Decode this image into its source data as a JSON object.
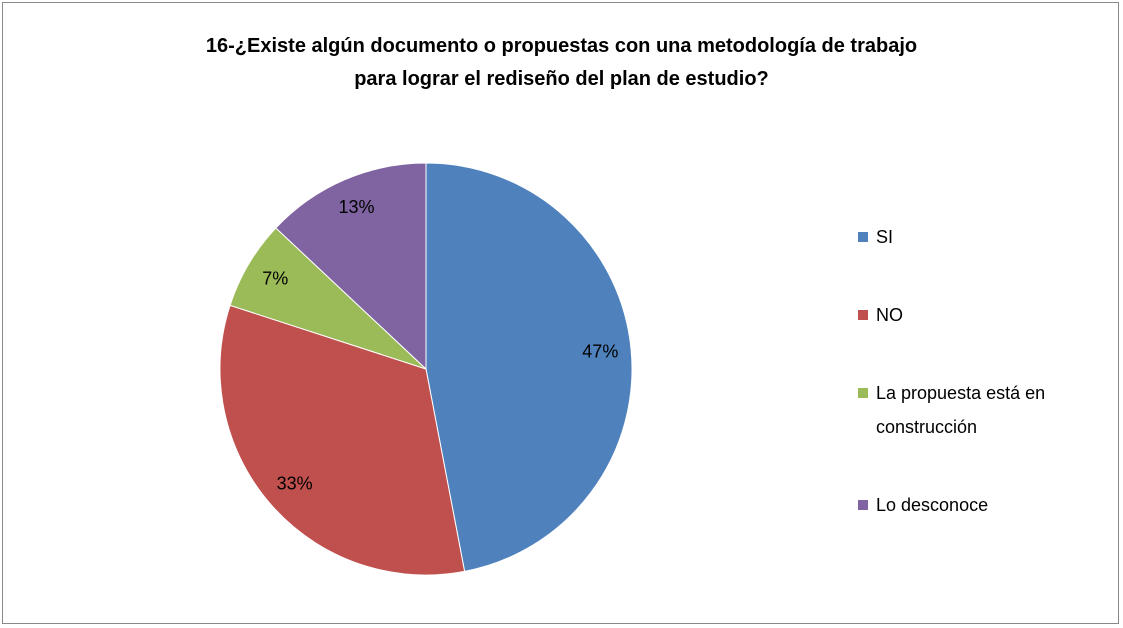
{
  "chart_data": {
    "type": "pie",
    "title": "16-¿Existe algún documento o propuestas con una metodología de trabajo para lograr el rediseño del plan de estudio?",
    "categories": [
      "SI",
      "NO",
      "La propuesta está en construcción",
      "Lo desconoce"
    ],
    "values": [
      47,
      33,
      7,
      13
    ],
    "value_labels": [
      "47%",
      "33%",
      "7%",
      "13%"
    ],
    "colors": [
      "#4f81bd",
      "#c0504d",
      "#9bbb59",
      "#8064a2"
    ],
    "legend": "right"
  }
}
